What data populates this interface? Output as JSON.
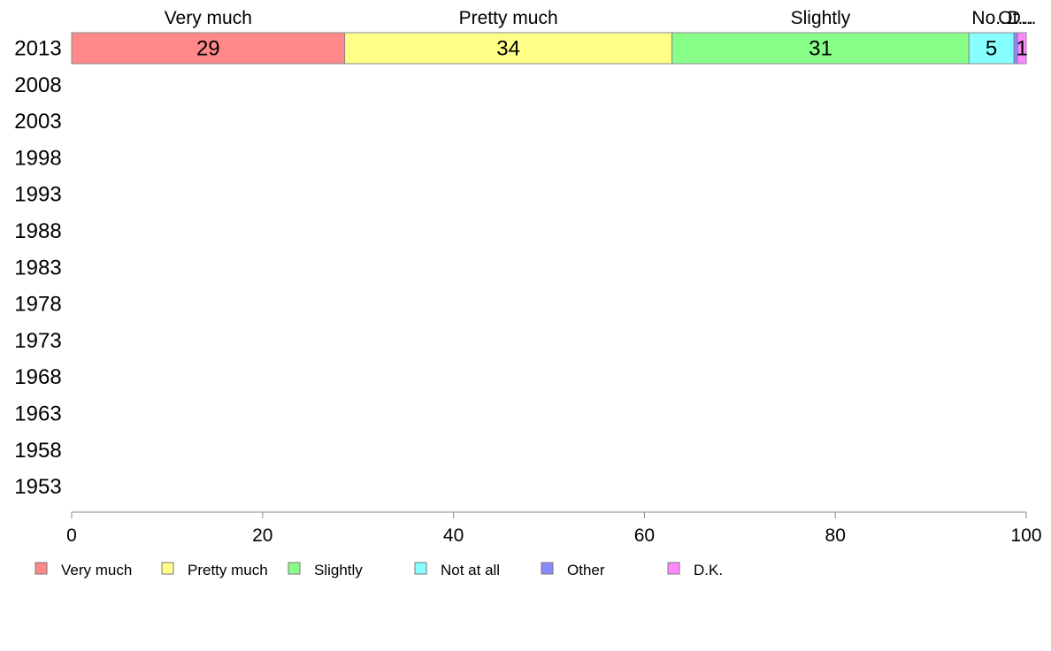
{
  "chart_data": {
    "type": "bar",
    "orientation": "horizontal",
    "stacked": true,
    "categories": [
      "2013",
      "2008",
      "2003",
      "1998",
      "1993",
      "1988",
      "1983",
      "1978",
      "1973",
      "1968",
      "1963",
      "1958",
      "1953"
    ],
    "series": [
      {
        "name": "Very much",
        "color": "#ff8888",
        "values": [
          28.6,
          null,
          null,
          null,
          null,
          null,
          null,
          null,
          null,
          null,
          null,
          null,
          null
        ],
        "data_labels": [
          "29"
        ],
        "top_label": "Very much"
      },
      {
        "name": "Pretty much",
        "color": "#ffff88",
        "values": [
          34.3,
          null,
          null,
          null,
          null,
          null,
          null,
          null,
          null,
          null,
          null,
          null,
          null
        ],
        "data_labels": [
          "34"
        ],
        "top_label": "Pretty much"
      },
      {
        "name": "Slightly",
        "color": "#88ff88",
        "values": [
          31.1,
          null,
          null,
          null,
          null,
          null,
          null,
          null,
          null,
          null,
          null,
          null,
          null
        ],
        "data_labels": [
          "31"
        ],
        "top_label": "Slightly"
      },
      {
        "name": "Not at all",
        "color": "#88ffff",
        "values": [
          4.7,
          null,
          null,
          null,
          null,
          null,
          null,
          null,
          null,
          null,
          null,
          null,
          null
        ],
        "data_labels": [
          "5"
        ],
        "top_label": "No..."
      },
      {
        "name": "Other",
        "color": "#8888ff",
        "values": [
          0.4,
          null,
          null,
          null,
          null,
          null,
          null,
          null,
          null,
          null,
          null,
          null,
          null
        ],
        "data_labels": [
          ""
        ],
        "top_label": "Ot..."
      },
      {
        "name": "D.K.",
        "color": "#ff88ff",
        "values": [
          0.9,
          null,
          null,
          null,
          null,
          null,
          null,
          null,
          null,
          null,
          null,
          null,
          null
        ],
        "data_labels": [
          "1"
        ],
        "top_label": "D..."
      }
    ],
    "xlim": [
      0,
      100
    ],
    "xticks": [
      "0",
      "20",
      "40",
      "60",
      "80",
      "100"
    ],
    "title": "",
    "xlabel": "",
    "ylabel": "",
    "grid": false,
    "legend_position": "bottom"
  }
}
